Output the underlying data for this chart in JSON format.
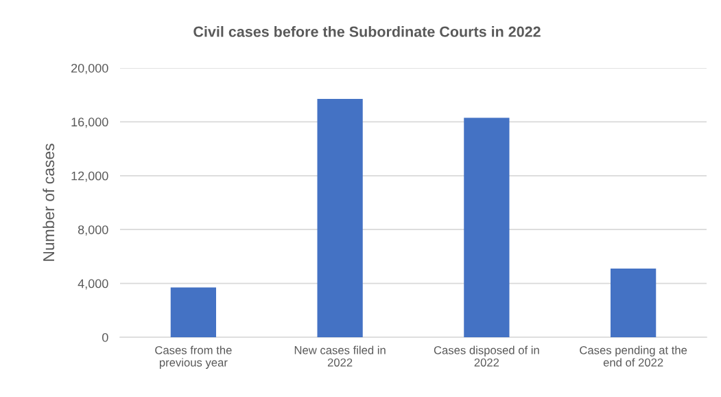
{
  "chart_data": {
    "type": "bar",
    "title": "Civil cases before the Subordinate Courts in 2022",
    "ylabel": "Number of cases",
    "categories": [
      "Cases from the previous year",
      "New cases filed in 2022",
      "Cases disposed of in 2022",
      "Cases pending at the end of 2022"
    ],
    "values": [
      3700,
      17700,
      16300,
      5100
    ],
    "color": "#4472c4",
    "ylim": [
      0,
      20000
    ],
    "yticks": [
      0,
      {
        "value": 4000,
        "label": "4,000"
      },
      {
        "value": 8000,
        "label": "8,000"
      },
      {
        "value": 12000,
        "label": "12,000"
      },
      {
        "value": 16000,
        "label": "16,000"
      },
      {
        "value": 20000,
        "label": "20,000"
      }
    ],
    "grid": "y"
  }
}
